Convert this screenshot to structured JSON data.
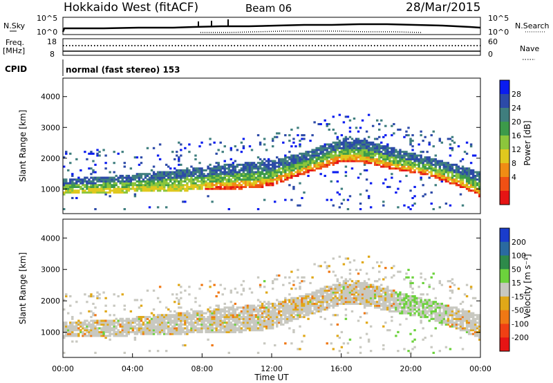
{
  "header": {
    "radar": "Hokkaido West (fitACF)",
    "beam": "Beam 06",
    "date": "28/Mar/2015"
  },
  "noise_panel": {
    "left_label": "N.Sky",
    "right_label": "N.Search",
    "ticks": [
      "10^5",
      "10^0"
    ]
  },
  "freq_panel": {
    "left_label": "Freq.",
    "left_unit": "[MHz]",
    "left_ticks": [
      "18",
      "8"
    ],
    "right_label": "Nave",
    "right_ticks": [
      "60",
      "0"
    ]
  },
  "cpid": {
    "label": "CPID",
    "value": "normal (fast stereo) 153"
  },
  "colors": {
    "power_scale": [
      "#0a1cf0",
      "#2c4aa8",
      "#3f7e7e",
      "#3c9a4a",
      "#8cc63c",
      "#e0c81e",
      "#f08c14",
      "#f05014",
      "#e61414"
    ],
    "velocity_scale": [
      "#1a3ccc",
      "#2a6aa0",
      "#2e8a4a",
      "#6cd23c",
      "#c8c8c0",
      "#e0a818",
      "#f07814",
      "#f04014",
      "#e61414"
    ]
  },
  "chart_data": [
    {
      "type": "heatmap",
      "name": "power",
      "ylabel": "Slant Range [km]",
      "yticks": [
        "4000",
        "3000",
        "2000",
        "1000"
      ],
      "ylim": [
        200,
        4600
      ],
      "xlim": [
        "00:00",
        "24:00"
      ],
      "colorbar": {
        "label": "Power [dB]",
        "ticks": [
          "28",
          "24",
          "20",
          "16",
          "12",
          "8",
          "4"
        ],
        "range": [
          0,
          32
        ]
      },
      "echo_band_lower_km": [
        {
          "t": 0,
          "km": 800
        },
        {
          "t": 3,
          "km": 850
        },
        {
          "t": 6,
          "km": 900
        },
        {
          "t": 9,
          "km": 950
        },
        {
          "t": 11,
          "km": 1000
        },
        {
          "t": 12,
          "km": 1100
        },
        {
          "t": 14,
          "km": 1500
        },
        {
          "t": 16,
          "km": 1850
        },
        {
          "t": 17,
          "km": 1850
        },
        {
          "t": 19,
          "km": 1600
        },
        {
          "t": 21,
          "km": 1400
        },
        {
          "t": 23,
          "km": 1000
        },
        {
          "t": 24,
          "km": 700
        }
      ],
      "echo_band_upper_km": [
        {
          "t": 0,
          "km": 1300
        },
        {
          "t": 3,
          "km": 1400
        },
        {
          "t": 6,
          "km": 1550
        },
        {
          "t": 9,
          "km": 1750
        },
        {
          "t": 11,
          "km": 1850
        },
        {
          "t": 12,
          "km": 1900
        },
        {
          "t": 14,
          "km": 2200
        },
        {
          "t": 16,
          "km": 2600
        },
        {
          "t": 17,
          "km": 2600
        },
        {
          "t": 19,
          "km": 2300
        },
        {
          "t": 21,
          "km": 2000
        },
        {
          "t": 23,
          "km": 1700
        },
        {
          "t": 24,
          "km": 1500
        }
      ]
    },
    {
      "type": "heatmap",
      "name": "velocity",
      "ylabel": "Slant Range [km]",
      "yticks": [
        "4000",
        "3000",
        "2000",
        "1000"
      ],
      "ylim": [
        200,
        4600
      ],
      "xlabel": "Time UT",
      "xticks": [
        "00:00",
        "04:00",
        "08:00",
        "12:00",
        "16:00",
        "20:00",
        "00:00"
      ],
      "xlim": [
        "00:00",
        "24:00"
      ],
      "colorbar": {
        "label": "Velocity [m s⁻¹]",
        "ticks": [
          "200",
          "100",
          "50",
          "15",
          "-15",
          "-50",
          "-100",
          "-200"
        ],
        "range": [
          -250,
          250
        ]
      }
    }
  ]
}
